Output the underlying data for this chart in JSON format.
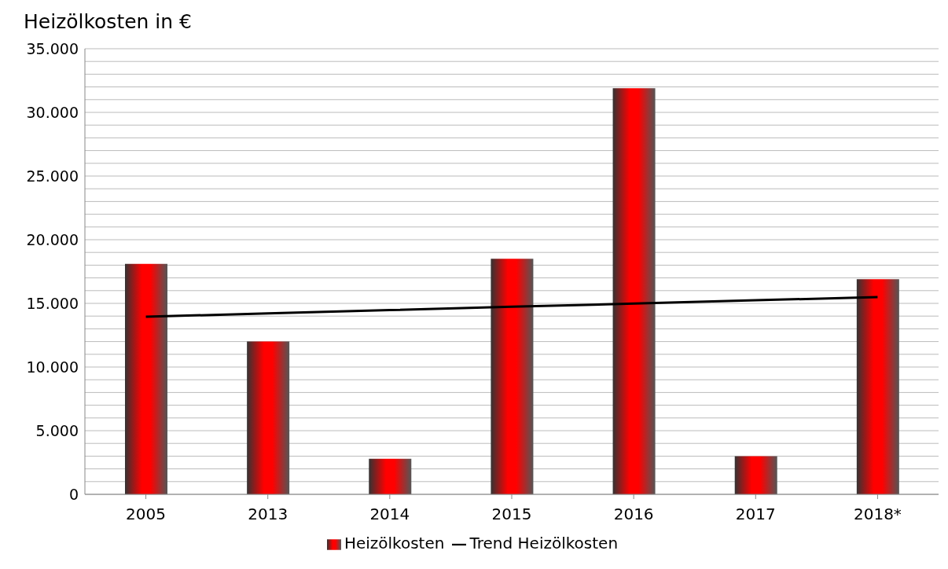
{
  "chart_data": {
    "type": "bar",
    "title": "Heizölkosten in €",
    "categories": [
      "2005",
      "2013",
      "2014",
      "2015",
      "2016",
      "2017",
      "2018*"
    ],
    "series": [
      {
        "name": "Heizölkosten",
        "color": "#ff0000",
        "values": [
          18100,
          12000,
          2800,
          18500,
          31900,
          3000,
          16900
        ]
      },
      {
        "name": "Trend Heizölkosten",
        "type": "line",
        "color": "#000000",
        "values": [
          13950,
          14210,
          14470,
          14730,
          14980,
          15240,
          15500
        ]
      }
    ],
    "ylim": [
      0,
      35000
    ],
    "yticks": [
      {
        "value": 0,
        "label": "0"
      },
      {
        "value": 1000,
        "label": null
      },
      {
        "value": 2000,
        "label": null
      },
      {
        "value": 3000,
        "label": null
      },
      {
        "value": 4000,
        "label": null
      },
      {
        "value": 5000,
        "label": "5.000"
      },
      {
        "value": 6000,
        "label": null
      },
      {
        "value": 7000,
        "label": null
      },
      {
        "value": 8000,
        "label": null
      },
      {
        "value": 9000,
        "label": null
      },
      {
        "value": 10000,
        "label": "10.000"
      },
      {
        "value": 11000,
        "label": null
      },
      {
        "value": 12000,
        "label": null
      },
      {
        "value": 13000,
        "label": null
      },
      {
        "value": 14000,
        "label": null
      },
      {
        "value": 15000,
        "label": "15.000"
      },
      {
        "value": 16000,
        "label": null
      },
      {
        "value": 17000,
        "label": null
      },
      {
        "value": 18000,
        "label": null
      },
      {
        "value": 19000,
        "label": null
      },
      {
        "value": 20000,
        "label": "20.000"
      },
      {
        "value": 21000,
        "label": null
      },
      {
        "value": 22000,
        "label": null
      },
      {
        "value": 23000,
        "label": null
      },
      {
        "value": 24000,
        "label": null
      },
      {
        "value": 25000,
        "label": "25.000"
      },
      {
        "value": 26000,
        "label": null
      },
      {
        "value": 27000,
        "label": null
      },
      {
        "value": 28000,
        "label": null
      },
      {
        "value": 29000,
        "label": null
      },
      {
        "value": 30000,
        "label": "30.000"
      },
      {
        "value": 31000,
        "label": null
      },
      {
        "value": 32000,
        "label": null
      },
      {
        "value": 33000,
        "label": null
      },
      {
        "value": 34000,
        "label": null
      },
      {
        "value": 35000,
        "label": "35.000"
      }
    ],
    "grid": "y",
    "legend": "bottom",
    "marker": "none",
    "line_style": "solid"
  }
}
